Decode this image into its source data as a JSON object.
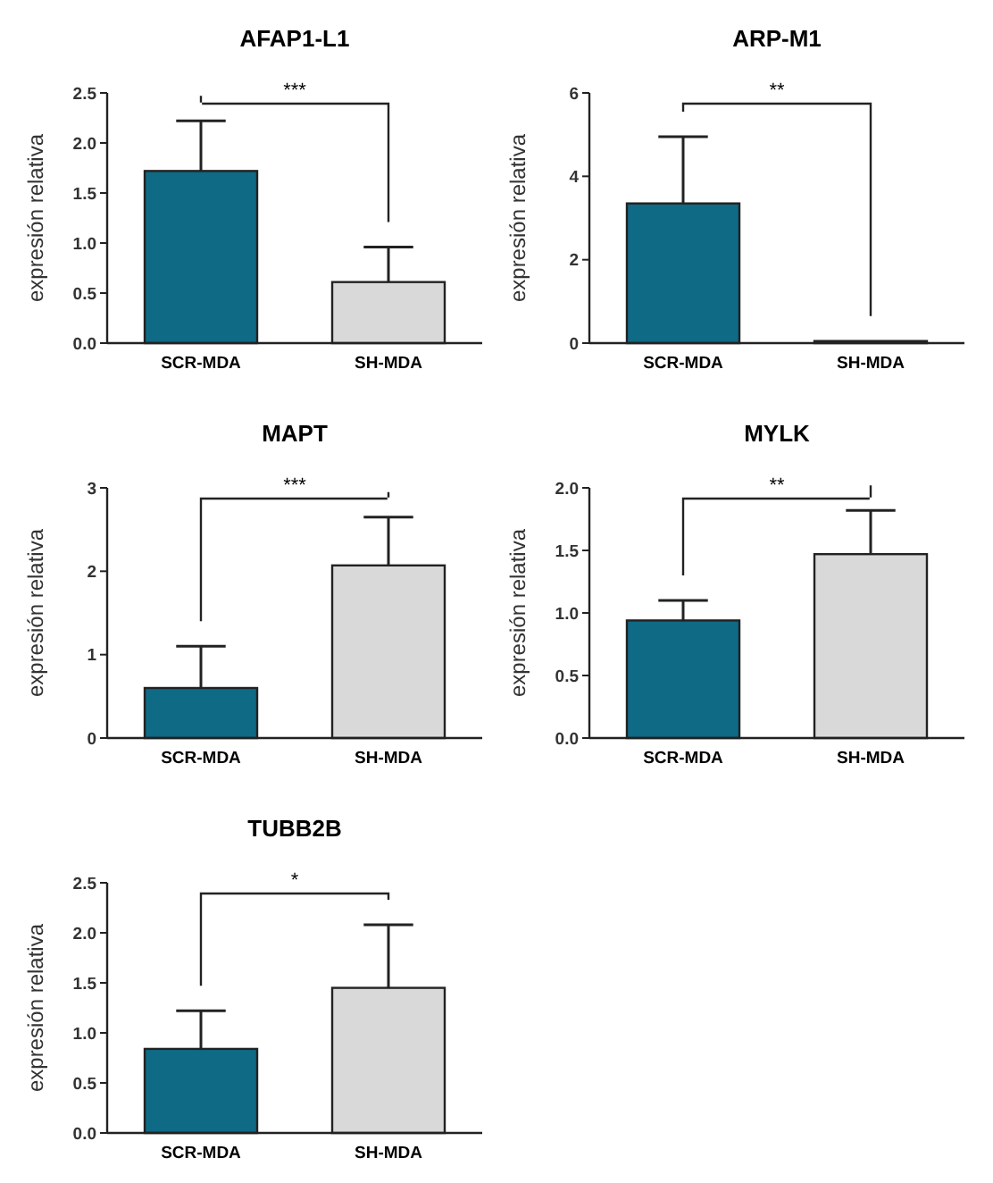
{
  "chart_data": [
    {
      "type": "bar",
      "title": "AFAP1-L1",
      "ylabel": "expresión relativa",
      "categories": [
        "SCR-MDA",
        "SH-MDA"
      ],
      "values": [
        1.72,
        0.61
      ],
      "colors": [
        "#0e6a85",
        "#d9d9d9"
      ],
      "errors": [
        [
          1.72,
          2.22
        ],
        [
          0.61,
          0.96
        ]
      ],
      "ylim": [
        0,
        2.5
      ],
      "yticks": [
        {
          "value": 0,
          "label": "0.0"
        },
        {
          "value": 0.5,
          "label": "0.5"
        },
        {
          "value": 1,
          "label": "1.0"
        },
        {
          "value": 1.5,
          "label": "1.5"
        },
        {
          "value": 2,
          "label": "2.0"
        },
        {
          "value": 2.5,
          "label": "2.5"
        }
      ],
      "annotations": [
        "***"
      ]
    },
    {
      "type": "bar",
      "title": "ARP-M1",
      "ylabel": "expresión relativa",
      "categories": [
        "SCR-MDA",
        "SH-MDA"
      ],
      "values": [
        3.35,
        0.05
      ],
      "colors": [
        "#0e6a85",
        "#d9d9d9"
      ],
      "errors": [
        [
          3.35,
          4.95
        ],
        null
      ],
      "ylim": [
        0,
        6
      ],
      "yticks": [
        0,
        2,
        4,
        6
      ],
      "annotations": [
        "**"
      ]
    },
    {
      "type": "bar",
      "title": "MAPT",
      "ylabel": "expresión relativa",
      "categories": [
        "SCR-MDA",
        "SH-MDA"
      ],
      "values": [
        0.6,
        2.07
      ],
      "colors": [
        "#0e6a85",
        "#d9d9d9"
      ],
      "errors": [
        [
          0.6,
          1.1
        ],
        [
          2.07,
          2.65
        ]
      ],
      "ylim": [
        0,
        3
      ],
      "yticks": [
        0,
        1,
        2,
        3
      ],
      "annotations": [
        "***"
      ]
    },
    {
      "type": "bar",
      "title": "MYLK",
      "ylabel": "expresión relativa",
      "categories": [
        "SCR-MDA",
        "SH-MDA"
      ],
      "values": [
        0.94,
        1.47
      ],
      "colors": [
        "#0e6a85",
        "#d9d9d9"
      ],
      "errors": [
        [
          0.94,
          1.1
        ],
        [
          1.47,
          1.82
        ]
      ],
      "ylim": [
        0,
        2
      ],
      "yticks": [
        {
          "value": 0,
          "label": "0.0"
        },
        {
          "value": 0.5,
          "label": "0.5"
        },
        {
          "value": 1,
          "label": "1.0"
        },
        {
          "value": 1.5,
          "label": "1.5"
        },
        {
          "value": 2,
          "label": "2.0"
        }
      ],
      "annotations": [
        "**"
      ]
    },
    {
      "type": "bar",
      "title": "TUBB2B",
      "ylabel": "expresión relativa",
      "categories": [
        "SCR-MDA",
        "SH-MDA"
      ],
      "values": [
        0.84,
        1.45
      ],
      "colors": [
        "#0e6a85",
        "#d9d9d9"
      ],
      "errors": [
        [
          0.84,
          1.22
        ],
        [
          1.45,
          2.08
        ]
      ],
      "ylim": [
        0,
        2.5
      ],
      "yticks": [
        {
          "value": 0,
          "label": "0.0"
        },
        {
          "value": 0.5,
          "label": "0.5"
        },
        {
          "value": 1,
          "label": "1.0"
        },
        {
          "value": 1.5,
          "label": "1.5"
        },
        {
          "value": 2,
          "label": "2.0"
        },
        {
          "value": 2.5,
          "label": "2.5"
        }
      ],
      "annotations": [
        "*"
      ]
    }
  ]
}
